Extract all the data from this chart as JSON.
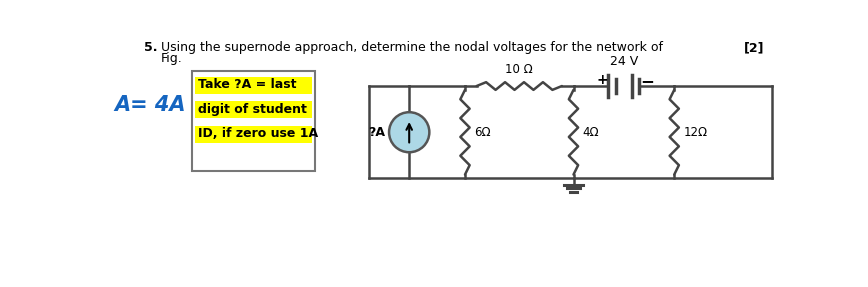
{
  "title_num": "5.",
  "title_text": "Using the supernode approach, determine the nodal voltages for the network of",
  "title_text2": "Fig.",
  "title_mark": "[2]",
  "handwritten_text": "A= 4A",
  "box_text_lines": [
    "Take ?A = last",
    "digit of student",
    "ID, if zero use 1A"
  ],
  "box_highlight_color": "#FFFF00",
  "box_border_color": "#888888",
  "current_source_label": "?A",
  "resistors": [
    "6Ω",
    "4Ω",
    "12Ω"
  ],
  "resistor_10": "10 Ω",
  "battery_label": "24 V",
  "bg_color": "#ffffff",
  "text_color": "#000000",
  "blue_text_color": "#1565C0",
  "circuit_line_color": "#444444",
  "current_source_fill": "#ADD8E6",
  "current_source_border": "#555555"
}
